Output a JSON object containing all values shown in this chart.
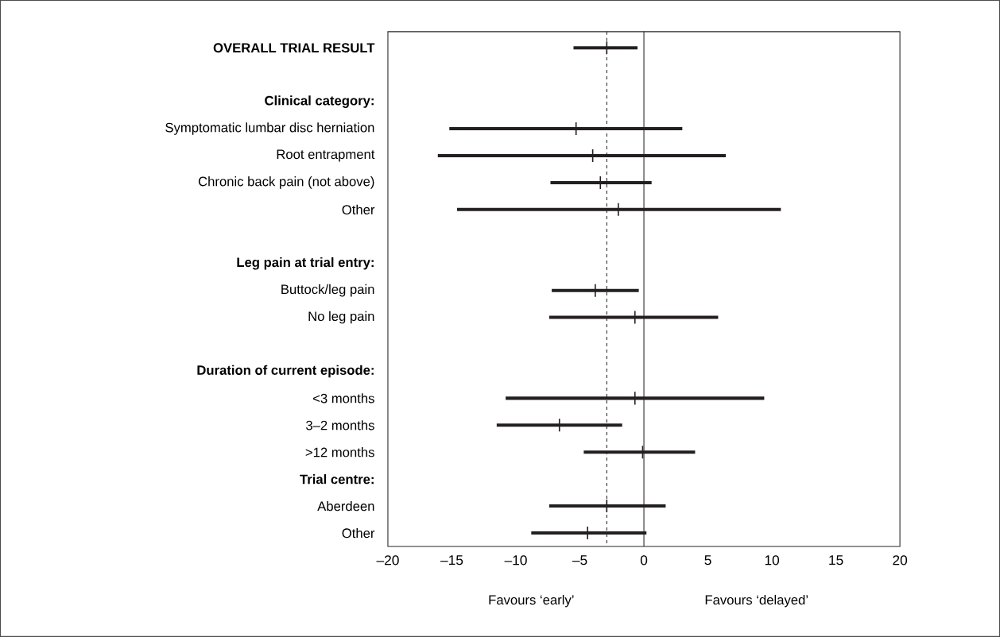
{
  "chart_data": {
    "type": "scatter",
    "orientation": "horizontal",
    "categories": [
      "**OVERALL TRIAL RESULT**",
      null,
      "**Clinical category:**",
      "Symptomatic lumbar disc herniation",
      "Root entrapment",
      "Chronic back pain (not above)",
      "Other",
      null,
      "**Leg pain at trial entry:**",
      "Buttock/leg pain",
      "No leg pain",
      null,
      "**Duration of current episode:**",
      "<3 months",
      "3–2 months",
      ">12 months",
      "**Trial centre:**",
      "Aberdeen",
      "Other"
    ],
    "values": [
      -2.9,
      null,
      null,
      -5.3,
      -4.0,
      -3.4,
      -2.0,
      null,
      null,
      -3.8,
      -0.7,
      null,
      null,
      -0.7,
      -6.6,
      -0.1,
      null,
      -2.9,
      -4.4
    ],
    "errors": [
      [
        -5.5,
        -0.5
      ],
      null,
      null,
      [
        -15.2,
        3.0
      ],
      [
        -16.1,
        6.4
      ],
      [
        -7.3,
        0.6
      ],
      [
        -14.6,
        10.7
      ],
      null,
      null,
      [
        -7.2,
        -0.4
      ],
      [
        -7.4,
        5.8
      ],
      null,
      null,
      [
        -10.8,
        9.4
      ],
      [
        -11.5,
        -1.7
      ],
      [
        -4.7,
        4.0
      ],
      null,
      [
        -7.4,
        1.7
      ],
      [
        -8.8,
        0.2
      ]
    ],
    "color": "#231f20",
    "xlim": [
      -20,
      20
    ],
    "xticks": [
      {
        "value": -20,
        "label": "–20"
      },
      {
        "value": -15,
        "label": "–15"
      },
      {
        "value": -10,
        "label": "–10"
      },
      {
        "value": -5,
        "label": "–5"
      },
      0,
      5,
      10,
      15,
      20
    ],
    "ref_lines": [
      {
        "axis": "x",
        "value": -2.9,
        "line_style": "dashed"
      },
      {
        "axis": "x",
        "value": 0,
        "line_style": "solid"
      }
    ],
    "annotations": [
      "Favours ‘early’",
      "Favours ‘delayed’"
    ],
    "marker": "cross"
  }
}
